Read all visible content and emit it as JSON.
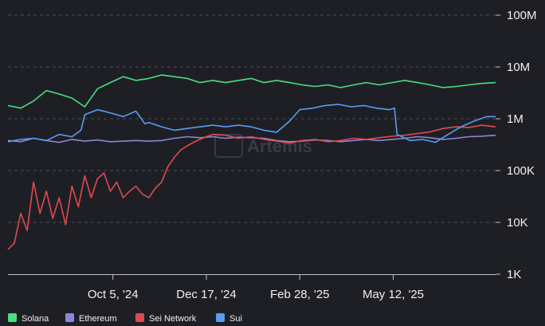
{
  "chart_data": {
    "type": "line",
    "title": "",
    "xlabel": "",
    "ylabel": "",
    "y_scale": "log",
    "ylim": [
      1000,
      100000000
    ],
    "xlim": [
      "2024-07-15",
      "2025-07-31"
    ],
    "y_ticks": [
      {
        "value": 1000,
        "label": "1K"
      },
      {
        "value": 10000,
        "label": "10K"
      },
      {
        "value": 100000,
        "label": "100K"
      },
      {
        "value": 1000000,
        "label": "1M"
      },
      {
        "value": 10000000,
        "label": "10M"
      },
      {
        "value": 100000000,
        "label": "100M"
      }
    ],
    "x_ticks": [
      {
        "date": "2024-10-05",
        "label": "Oct 5, '24"
      },
      {
        "date": "2024-12-17",
        "label": "Dec 17, '24"
      },
      {
        "date": "2025-02-28",
        "label": "Feb 28, '25"
      },
      {
        "date": "2025-05-12",
        "label": "May 12, '25"
      }
    ],
    "grid": {
      "horizontal": true,
      "vertical": false
    },
    "legend_position": "bottom-left",
    "watermark": "Artemis",
    "series": [
      {
        "name": "Solana",
        "color": "#4ade80",
        "points": [
          [
            "2024-07-15",
            1800000
          ],
          [
            "2024-07-25",
            1600000
          ],
          [
            "2024-08-04",
            2200000
          ],
          [
            "2024-08-14",
            3500000
          ],
          [
            "2024-08-24",
            3000000
          ],
          [
            "2024-09-03",
            2500000
          ],
          [
            "2024-09-13",
            1700000
          ],
          [
            "2024-09-23",
            3800000
          ],
          [
            "2024-10-03",
            5000000
          ],
          [
            "2024-10-13",
            6500000
          ],
          [
            "2024-10-23",
            5500000
          ],
          [
            "2024-11-02",
            6000000
          ],
          [
            "2024-11-12",
            7000000
          ],
          [
            "2024-11-22",
            6500000
          ],
          [
            "2024-12-02",
            6000000
          ],
          [
            "2024-12-12",
            5000000
          ],
          [
            "2024-12-22",
            5500000
          ],
          [
            "2025-01-01",
            5000000
          ],
          [
            "2025-01-11",
            5500000
          ],
          [
            "2025-01-21",
            6000000
          ],
          [
            "2025-01-31",
            5000000
          ],
          [
            "2025-02-10",
            5500000
          ],
          [
            "2025-02-20",
            5000000
          ],
          [
            "2025-03-02",
            4500000
          ],
          [
            "2025-03-12",
            4200000
          ],
          [
            "2025-03-22",
            4500000
          ],
          [
            "2025-04-01",
            4000000
          ],
          [
            "2025-04-11",
            4500000
          ],
          [
            "2025-04-21",
            5000000
          ],
          [
            "2025-05-01",
            4500000
          ],
          [
            "2025-05-11",
            5000000
          ],
          [
            "2025-05-21",
            5500000
          ],
          [
            "2025-05-31",
            5000000
          ],
          [
            "2025-06-10",
            4500000
          ],
          [
            "2025-06-20",
            4000000
          ],
          [
            "2025-06-30",
            4200000
          ],
          [
            "2025-07-10",
            4500000
          ],
          [
            "2025-07-20",
            4800000
          ],
          [
            "2025-07-31",
            5000000
          ]
        ]
      },
      {
        "name": "Ethereum",
        "color": "#8b87d6",
        "points": [
          [
            "2024-07-15",
            380000
          ],
          [
            "2024-07-25",
            360000
          ],
          [
            "2024-08-04",
            420000
          ],
          [
            "2024-08-14",
            380000
          ],
          [
            "2024-08-24",
            350000
          ],
          [
            "2024-09-03",
            400000
          ],
          [
            "2024-09-13",
            370000
          ],
          [
            "2024-09-23",
            390000
          ],
          [
            "2024-10-03",
            360000
          ],
          [
            "2024-10-13",
            370000
          ],
          [
            "2024-10-23",
            380000
          ],
          [
            "2024-11-02",
            370000
          ],
          [
            "2024-11-12",
            380000
          ],
          [
            "2024-11-22",
            420000
          ],
          [
            "2024-12-02",
            450000
          ],
          [
            "2024-12-12",
            430000
          ],
          [
            "2024-12-22",
            450000
          ],
          [
            "2025-01-01",
            420000
          ],
          [
            "2025-01-11",
            440000
          ],
          [
            "2025-01-21",
            430000
          ],
          [
            "2025-01-31",
            420000
          ],
          [
            "2025-02-10",
            380000
          ],
          [
            "2025-02-20",
            360000
          ],
          [
            "2025-03-02",
            370000
          ],
          [
            "2025-03-12",
            390000
          ],
          [
            "2025-03-22",
            380000
          ],
          [
            "2025-04-01",
            360000
          ],
          [
            "2025-04-11",
            380000
          ],
          [
            "2025-04-21",
            400000
          ],
          [
            "2025-05-01",
            380000
          ],
          [
            "2025-05-11",
            400000
          ],
          [
            "2025-05-21",
            420000
          ],
          [
            "2025-05-31",
            450000
          ],
          [
            "2025-06-10",
            430000
          ],
          [
            "2025-06-20",
            400000
          ],
          [
            "2025-06-30",
            420000
          ],
          [
            "2025-07-10",
            450000
          ],
          [
            "2025-07-20",
            460000
          ],
          [
            "2025-07-31",
            480000
          ]
        ]
      },
      {
        "name": "Sei Network",
        "color": "#e04a52",
        "points": [
          [
            "2024-07-15",
            3000
          ],
          [
            "2024-07-20",
            4000
          ],
          [
            "2024-07-25",
            15000
          ],
          [
            "2024-07-30",
            7000
          ],
          [
            "2024-08-04",
            60000
          ],
          [
            "2024-08-09",
            15000
          ],
          [
            "2024-08-14",
            40000
          ],
          [
            "2024-08-19",
            12000
          ],
          [
            "2024-08-24",
            30000
          ],
          [
            "2024-08-29",
            9000
          ],
          [
            "2024-09-03",
            50000
          ],
          [
            "2024-09-08",
            20000
          ],
          [
            "2024-09-13",
            80000
          ],
          [
            "2024-09-18",
            30000
          ],
          [
            "2024-09-23",
            70000
          ],
          [
            "2024-09-28",
            90000
          ],
          [
            "2024-10-03",
            40000
          ],
          [
            "2024-10-08",
            60000
          ],
          [
            "2024-10-13",
            30000
          ],
          [
            "2024-10-18",
            40000
          ],
          [
            "2024-10-23",
            50000
          ],
          [
            "2024-10-28",
            35000
          ],
          [
            "2024-11-02",
            30000
          ],
          [
            "2024-11-07",
            45000
          ],
          [
            "2024-11-12",
            60000
          ],
          [
            "2024-11-17",
            120000
          ],
          [
            "2024-11-22",
            180000
          ],
          [
            "2024-11-27",
            250000
          ],
          [
            "2024-12-02",
            300000
          ],
          [
            "2024-12-07",
            350000
          ],
          [
            "2024-12-12",
            400000
          ],
          [
            "2024-12-17",
            450000
          ],
          [
            "2024-12-22",
            500000
          ],
          [
            "2025-01-01",
            480000
          ],
          [
            "2025-01-11",
            420000
          ],
          [
            "2025-01-21",
            450000
          ],
          [
            "2025-01-31",
            400000
          ],
          [
            "2025-02-10",
            370000
          ],
          [
            "2025-02-20",
            340000
          ],
          [
            "2025-03-02",
            380000
          ],
          [
            "2025-03-12",
            400000
          ],
          [
            "2025-03-22",
            360000
          ],
          [
            "2025-04-01",
            380000
          ],
          [
            "2025-04-11",
            420000
          ],
          [
            "2025-04-21",
            400000
          ],
          [
            "2025-05-01",
            430000
          ],
          [
            "2025-05-11",
            460000
          ],
          [
            "2025-05-21",
            480000
          ],
          [
            "2025-05-31",
            520000
          ],
          [
            "2025-06-10",
            560000
          ],
          [
            "2025-06-20",
            650000
          ],
          [
            "2025-06-30",
            700000
          ],
          [
            "2025-07-10",
            680000
          ],
          [
            "2025-07-20",
            750000
          ],
          [
            "2025-07-31",
            700000
          ]
        ]
      },
      {
        "name": "Sui",
        "color": "#5b9cf0",
        "points": [
          [
            "2024-07-15",
            360000
          ],
          [
            "2024-07-25",
            400000
          ],
          [
            "2024-08-04",
            420000
          ],
          [
            "2024-08-14",
            380000
          ],
          [
            "2024-08-24",
            500000
          ],
          [
            "2024-09-03",
            450000
          ],
          [
            "2024-09-10",
            600000
          ],
          [
            "2024-09-13",
            1200000
          ],
          [
            "2024-09-23",
            1500000
          ],
          [
            "2024-10-03",
            1300000
          ],
          [
            "2024-10-13",
            1100000
          ],
          [
            "2024-10-23",
            1400000
          ],
          [
            "2024-10-30",
            800000
          ],
          [
            "2024-11-02",
            850000
          ],
          [
            "2024-11-12",
            700000
          ],
          [
            "2024-11-22",
            600000
          ],
          [
            "2024-12-02",
            650000
          ],
          [
            "2024-12-12",
            700000
          ],
          [
            "2024-12-22",
            750000
          ],
          [
            "2025-01-01",
            700000
          ],
          [
            "2025-01-11",
            750000
          ],
          [
            "2025-01-21",
            700000
          ],
          [
            "2025-01-31",
            600000
          ],
          [
            "2025-02-10",
            550000
          ],
          [
            "2025-02-20",
            900000
          ],
          [
            "2025-02-28",
            1500000
          ],
          [
            "2025-03-10",
            1600000
          ],
          [
            "2025-03-20",
            1800000
          ],
          [
            "2025-03-30",
            1900000
          ],
          [
            "2025-04-09",
            1700000
          ],
          [
            "2025-04-19",
            1800000
          ],
          [
            "2025-04-29",
            1600000
          ],
          [
            "2025-05-09",
            1500000
          ],
          [
            "2025-05-13",
            1600000
          ],
          [
            "2025-05-15",
            500000
          ],
          [
            "2025-05-25",
            380000
          ],
          [
            "2025-06-04",
            400000
          ],
          [
            "2025-06-14",
            350000
          ],
          [
            "2025-06-24",
            500000
          ],
          [
            "2025-07-04",
            700000
          ],
          [
            "2025-07-14",
            900000
          ],
          [
            "2025-07-24",
            1100000
          ],
          [
            "2025-07-31",
            1100000
          ]
        ]
      }
    ]
  }
}
